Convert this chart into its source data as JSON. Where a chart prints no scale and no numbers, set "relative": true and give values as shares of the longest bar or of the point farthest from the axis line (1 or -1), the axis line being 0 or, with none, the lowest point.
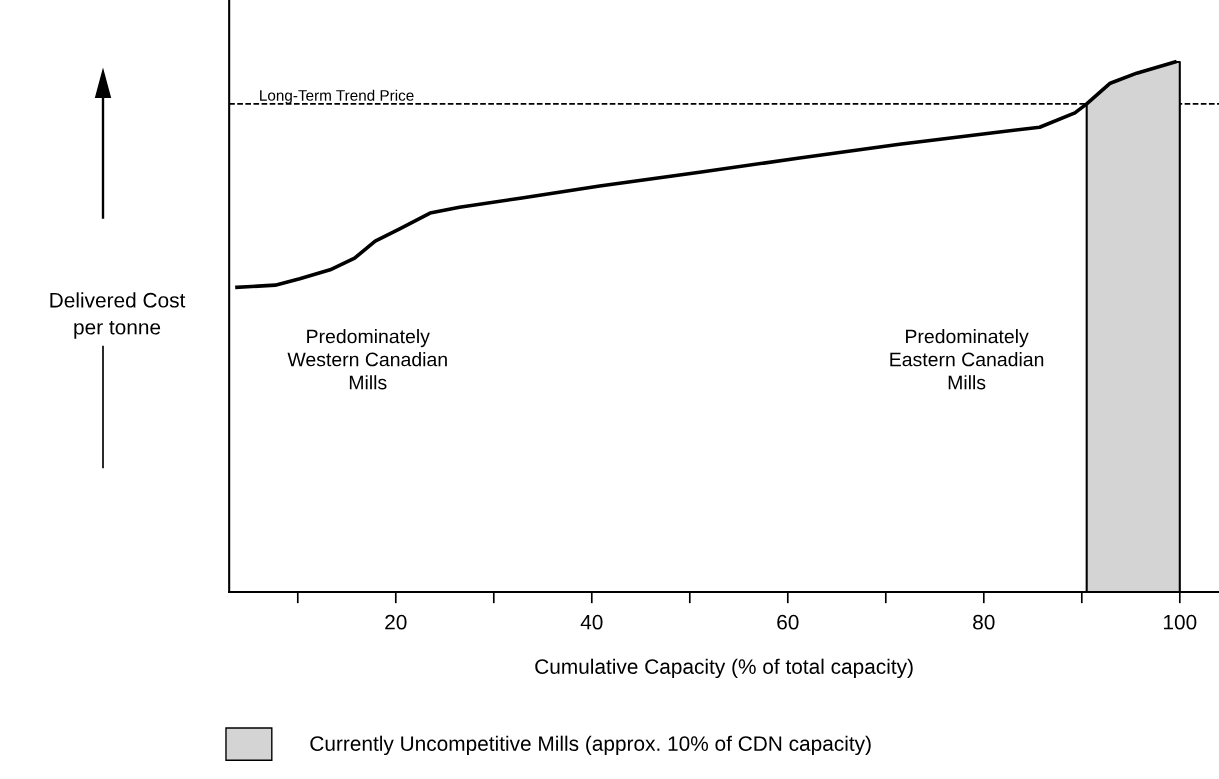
{
  "chart_data": {
    "type": "line",
    "relative": true,
    "xlabel": "Cumulative Capacity (% of total capacity)",
    "ylabel": "Delivered Cost\nper tonne",
    "x": [
      3.8,
      7.7,
      10.2,
      13.3,
      15.8,
      17.9,
      20.4,
      23.5,
      26.5,
      32.7,
      40.8,
      51.0,
      61.2,
      71.4,
      81.6,
      85.7,
      89.3,
      90.5,
      92.9,
      95.6,
      99.5
    ],
    "series": [
      {
        "color": "#000000",
        "values": [
          0.575,
          0.579,
          0.591,
          0.608,
          0.63,
          0.662,
          0.685,
          0.715,
          0.726,
          0.743,
          0.766,
          0.792,
          0.819,
          0.845,
          0.868,
          0.877,
          0.904,
          0.921,
          0.96,
          0.979,
          1.0
        ]
      }
    ],
    "xlim": [
      3.0,
      104
    ],
    "xticks": [
      {
        "value": 10,
        "label": null
      },
      20,
      {
        "value": 30,
        "label": null
      },
      40,
      {
        "value": 50,
        "label": null
      },
      60,
      {
        "value": 70,
        "label": null
      },
      80,
      {
        "value": 90,
        "label": null
      },
      100
    ],
    "ref_lines": [
      {
        "axis": "y",
        "value": 0.921,
        "label": "Long-Term Trend Price",
        "color": "#000000",
        "line_style": "dashed"
      }
    ],
    "bands": [
      {
        "axis": "x",
        "from": 90.5,
        "to": 100,
        "label": "Currently Uncompetitive Mills (approx. 10% of CDN capacity)",
        "color": "#d4d4d4"
      }
    ],
    "annotations": [
      "Predominately\nWestern Canadian\nMills",
      "Predominately\nEastern Canadian\nMills"
    ],
    "legend": "bottom",
    "grid": false,
    "marker": "none",
    "line_style": "solid"
  }
}
